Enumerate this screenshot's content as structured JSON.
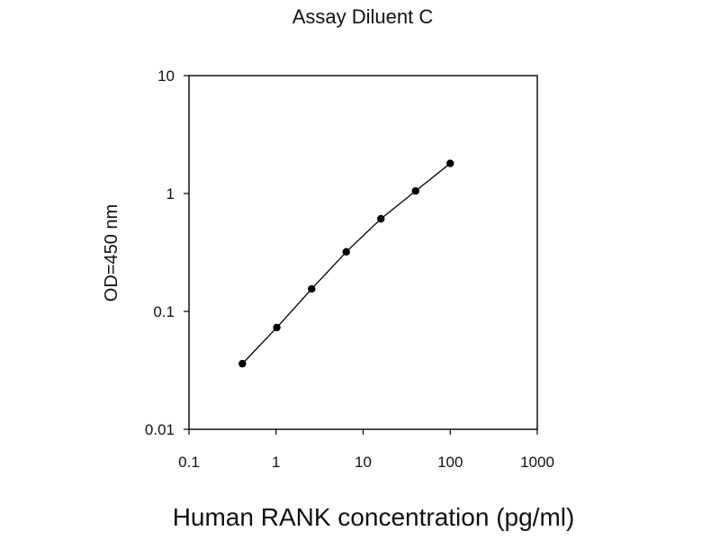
{
  "chart_data": {
    "type": "scatter",
    "title": "Assay Diluent C",
    "xlabel": "Human RANK concentration (pg/ml)",
    "ylabel": "OD=450 nm",
    "x_scale": "log",
    "y_scale": "log",
    "xlim": [
      0.1,
      1000
    ],
    "ylim": [
      0.01,
      10
    ],
    "x_ticks": [
      {
        "value": 0.1,
        "label": "0.1"
      },
      {
        "value": 1,
        "label": "1"
      },
      {
        "value": 10,
        "label": "10"
      },
      {
        "value": 100,
        "label": "100"
      },
      {
        "value": 1000,
        "label": "1000"
      }
    ],
    "y_ticks": [
      {
        "value": 0.01,
        "label": "0.01"
      },
      {
        "value": 0.1,
        "label": "0.1"
      },
      {
        "value": 1,
        "label": "1"
      },
      {
        "value": 10,
        "label": "10"
      }
    ],
    "grid": false,
    "legend": "none",
    "series": [
      {
        "x": [
          0.41,
          1.02,
          2.56,
          6.4,
          16,
          40,
          100
        ],
        "y": [
          0.036,
          0.073,
          0.155,
          0.32,
          0.61,
          1.05,
          1.8
        ],
        "style": "line-with-markers",
        "color": "#000000"
      }
    ]
  }
}
